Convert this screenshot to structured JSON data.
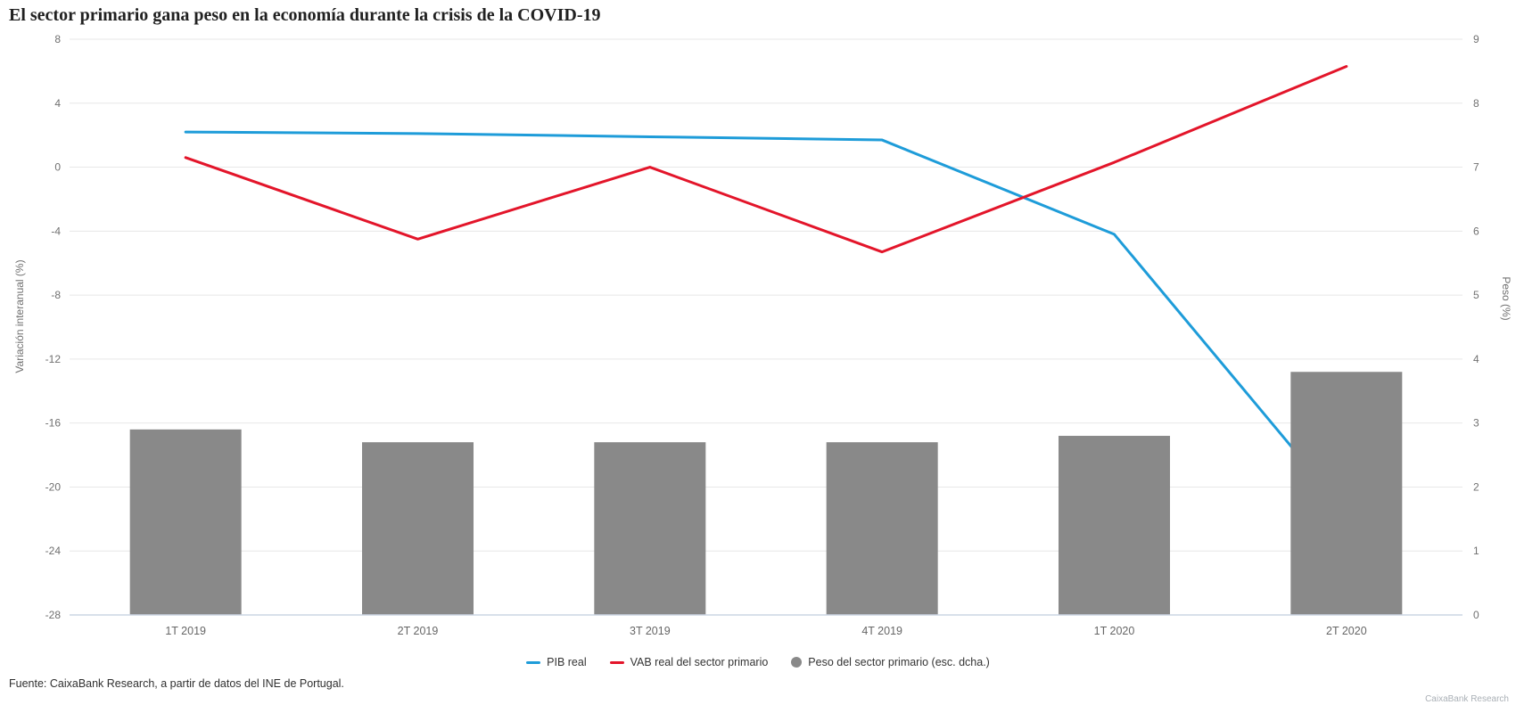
{
  "title": "El sector primario gana peso en la economía durante la crisis de la COVID-19",
  "footer": {
    "source": "Fuente: CaixaBank Research, a partir de datos del INE de Portugal.",
    "watermark": "CaixaBank Research"
  },
  "colors": {
    "pib_line": "#1e9cd9",
    "vab_line": "#e3152a",
    "peso_bar": "#898989",
    "grid": "#e7e7e7",
    "axis_line": "#ccd6e4",
    "tick_text": "#707070",
    "category_text": "#666666"
  },
  "chart_data": {
    "type": "combo",
    "categories": [
      "1T 2019",
      "2T 2019",
      "3T 2019",
      "4T 2019",
      "1T 2020",
      "2T 2020"
    ],
    "series": [
      {
        "name": "PIB real",
        "kind": "line",
        "axis": "left",
        "color": "#1e9cd9",
        "values": [
          2.2,
          2.1,
          1.9,
          1.7,
          -4.2,
          -21.6
        ],
        "note": "last point hidden behind 2T 2020 bar"
      },
      {
        "name": "VAB real del sector primario",
        "kind": "line",
        "axis": "left",
        "color": "#e3152a",
        "values": [
          0.6,
          -4.5,
          0.0,
          -5.3,
          0.3,
          6.3
        ]
      },
      {
        "name": "Peso del sector primario (esc. dcha.)",
        "kind": "bar",
        "axis": "right",
        "color": "#898989",
        "values": [
          2.9,
          2.7,
          2.7,
          2.7,
          2.8,
          3.8
        ]
      }
    ],
    "left_axis": {
      "label": "Variación interanual (%)",
      "min": -28,
      "max": 8,
      "step": 4
    },
    "right_axis": {
      "label": "Peso (%)",
      "min": 0,
      "max": 9,
      "step": 1
    },
    "grid": true,
    "legend_position": "bottom"
  }
}
